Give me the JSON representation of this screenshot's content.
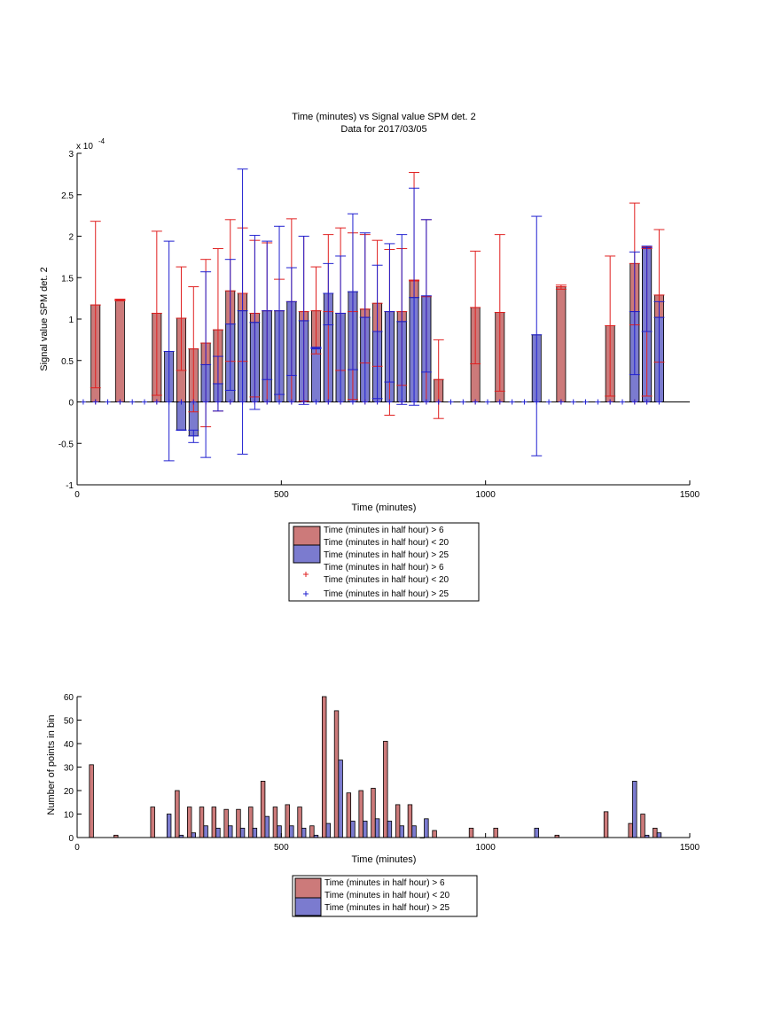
{
  "chart_data": [
    {
      "type": "bar",
      "title": "Time (minutes) vs Signal value SPM det. 2",
      "subtitle": "Data for 2017/03/05",
      "xlabel": "Time (minutes)",
      "ylabel": "Signal value SPM det. 2",
      "exponent_label": "x 10",
      "exponent_power": "-4",
      "xlim": [
        0,
        1500
      ],
      "ylim": [
        -1,
        3
      ],
      "y_scale": 0.0001,
      "xticks": [
        "0",
        "500",
        "1000",
        "1500"
      ],
      "yticks": [
        "-1",
        "-0.5",
        "0",
        "0.5",
        "1",
        "1.5",
        "2",
        "2.5",
        "3"
      ],
      "series": [
        {
          "name": "Time (minutes in half hour) > 6\nTime (minutes in half hour) < 20",
          "color": "#cc7a7a",
          "error_color": "#e02020",
          "x": [
            45,
            105,
            195,
            255,
            285,
            315,
            345,
            375,
            405,
            435,
            465,
            495,
            525,
            555,
            585,
            615,
            645,
            675,
            705,
            735,
            765,
            795,
            825,
            855,
            885,
            975,
            1035,
            1185,
            1305,
            1365,
            1395,
            1425
          ],
          "values": [
            1.17,
            1.23,
            1.07,
            1.01,
            0.64,
            0.71,
            0.87,
            1.34,
            1.31,
            1.07,
            1.1,
            1.1,
            1.21,
            1.09,
            1.1,
            1.09,
            1.07,
            1.09,
            1.12,
            1.19,
            1.09,
            1.09,
            1.47,
            1.27,
            0.27,
            1.14,
            1.08,
            1.39,
            0.92,
            1.67,
            1.87,
            1.29
          ],
          "err_low": [
            0.17,
            1.22,
            0.08,
            0.38,
            -0.12,
            -0.3,
            -0.11,
            0.49,
            0.49,
            0.06,
            0.0,
            0.0,
            0.0,
            0.01,
            0.58,
            0.0,
            0.38,
            0.03,
            0.47,
            0.43,
            -0.16,
            0.2,
            1.46,
            0.0,
            -0.2,
            0.46,
            0.13,
            1.36,
            0.07,
            0.93,
            0.07,
            0.48
          ],
          "err_high": [
            2.18,
            1.24,
            2.06,
            1.63,
            1.39,
            1.72,
            1.85,
            2.2,
            2.1,
            1.95,
            1.92,
            1.48,
            2.21,
            2.0,
            1.63,
            2.02,
            2.1,
            2.04,
            2.02,
            1.95,
            1.84,
            1.85,
            2.77,
            2.2,
            0.75,
            1.82,
            2.02,
            1.41,
            1.76,
            2.4,
            1.85,
            2.08
          ]
        },
        {
          "name": "Time (minutes in half hour) > 25",
          "color": "#7b7bcf",
          "error_color": "#2020d0",
          "x": [
            225,
            255,
            285,
            315,
            345,
            375,
            405,
            435,
            465,
            495,
            525,
            555,
            585,
            615,
            645,
            675,
            705,
            735,
            765,
            795,
            825,
            855,
            1125,
            1365,
            1395,
            1425
          ],
          "values": [
            0.61,
            -0.34,
            -0.41,
            0.45,
            0.22,
            0.94,
            1.1,
            0.96,
            1.1,
            1.1,
            1.21,
            0.98,
            0.65,
            1.31,
            1.07,
            1.33,
            1.02,
            0.85,
            1.09,
            0.97,
            1.26,
            1.28,
            0.81,
            1.09,
            1.86,
            1.02
          ],
          "err_low": [
            -0.71,
            -0.34,
            -0.49,
            -0.67,
            -0.11,
            0.14,
            -0.63,
            -0.09,
            0.27,
            0.09,
            0.32,
            -0.03,
            0.64,
            0.93,
            0.0,
            0.39,
            0.0,
            0.04,
            0.24,
            -0.03,
            -0.04,
            0.36,
            -0.65,
            0.33,
            0.85,
            0.0
          ],
          "err_high": [
            1.94,
            -0.34,
            -0.34,
            1.57,
            0.55,
            1.72,
            2.81,
            2.01,
            1.94,
            2.12,
            1.62,
            2.0,
            0.66,
            1.67,
            1.76,
            2.27,
            2.04,
            1.65,
            1.91,
            2.02,
            2.58,
            2.2,
            2.24,
            1.81,
            1.88,
            1.21
          ]
        },
        {
          "name": "Time (minutes in half hour) > 6\nTime (minutes in half hour) < 20",
          "type": "marker",
          "marker": "+",
          "color": "#e02020",
          "x": [
            45,
            105,
            195,
            255,
            285,
            315,
            345,
            375,
            405,
            435,
            465,
            495,
            525,
            555,
            585,
            615,
            645,
            675,
            705,
            735,
            765,
            795,
            825,
            855,
            885,
            975,
            1035,
            1185,
            1305,
            1365,
            1395,
            1425
          ],
          "values": [
            0,
            0,
            0,
            0,
            0,
            0,
            0,
            0,
            0,
            0,
            0,
            0,
            0,
            0,
            0,
            0,
            0,
            0,
            0,
            0,
            0,
            0,
            0,
            0,
            0,
            0,
            0,
            0,
            0,
            0,
            0,
            0
          ]
        },
        {
          "name": "Time (minutes in half hour) > 25",
          "type": "marker",
          "marker": "+",
          "color": "#2020d0",
          "x": [
            15,
            45,
            75,
            105,
            135,
            165,
            195,
            225,
            255,
            285,
            315,
            345,
            375,
            405,
            435,
            465,
            495,
            525,
            555,
            585,
            615,
            645,
            675,
            705,
            735,
            765,
            795,
            825,
            855,
            885,
            915,
            945,
            975,
            1005,
            1035,
            1065,
            1095,
            1125,
            1155,
            1185,
            1215,
            1245,
            1275,
            1305,
            1335,
            1365,
            1395,
            1425
          ],
          "values": [
            0,
            0,
            0,
            0,
            0,
            0,
            0,
            0,
            0,
            0,
            0,
            0,
            0,
            0,
            0,
            0,
            0,
            0,
            0,
            0,
            0,
            0,
            0,
            0,
            0,
            0,
            0,
            0,
            0,
            0,
            0,
            0,
            0,
            0,
            0,
            0,
            0,
            0,
            0,
            0,
            0,
            0,
            0,
            0,
            0,
            0,
            0,
            0
          ]
        }
      ],
      "legend": {
        "placement": "below",
        "entries": [
          {
            "label": "Time (minutes in half hour) > 6\nTime (minutes in half hour) < 20",
            "kind": "bar",
            "color": "#cc7a7a"
          },
          {
            "label": "Time (minutes in half hour) > 25",
            "kind": "bar",
            "color": "#7b7bcf"
          },
          {
            "label": "Time (minutes in half hour) > 6\nTime (minutes in half hour) < 20",
            "kind": "marker",
            "color": "#e02020"
          },
          {
            "label": "Time (minutes in half hour) > 25",
            "kind": "marker",
            "color": "#2020d0"
          }
        ]
      }
    },
    {
      "type": "bar",
      "title": "",
      "xlabel": "Time (minutes)",
      "ylabel": "Number of points in bin",
      "xlim": [
        0,
        1500
      ],
      "ylim": [
        0,
        60
      ],
      "xticks": [
        "0",
        "500",
        "1000",
        "1500"
      ],
      "yticks": [
        "0",
        "10",
        "20",
        "30",
        "40",
        "50",
        "60"
      ],
      "series": [
        {
          "name": "Time (minutes in half hour) > 6\nTime (minutes in half hour) < 20",
          "color": "#cc7a7a",
          "x": [
            45,
            105,
            195,
            255,
            285,
            315,
            345,
            375,
            405,
            435,
            465,
            495,
            525,
            555,
            585,
            615,
            645,
            675,
            705,
            735,
            765,
            795,
            825,
            855,
            885,
            975,
            1035,
            1185,
            1305,
            1365,
            1395,
            1425
          ],
          "values": [
            31,
            1,
            13,
            20,
            13,
            13,
            13,
            12,
            12,
            13,
            24,
            13,
            14,
            13,
            5,
            60,
            54,
            19,
            20,
            21,
            41,
            14,
            14,
            0,
            3,
            4,
            4,
            1,
            11,
            6,
            10,
            4
          ]
        },
        {
          "name": "Time (minutes in half hour) > 25",
          "color": "#7b7bcf",
          "x": [
            225,
            255,
            285,
            315,
            345,
            375,
            405,
            435,
            465,
            495,
            525,
            555,
            585,
            615,
            645,
            675,
            705,
            735,
            765,
            795,
            825,
            855,
            1125,
            1365,
            1395,
            1425
          ],
          "values": [
            10,
            1,
            2,
            5,
            4,
            5,
            4,
            4,
            9,
            5,
            5,
            4,
            1,
            6,
            33,
            7,
            7,
            8,
            7,
            5,
            5,
            8,
            4,
            24,
            1,
            2
          ]
        }
      ],
      "legend": {
        "placement": "below",
        "entries": [
          {
            "label": "Time (minutes in half hour) > 6\nTime (minutes in half hour) < 20",
            "kind": "bar",
            "color": "#cc7a7a"
          },
          {
            "label": "Time (minutes in half hour) > 25",
            "kind": "bar",
            "color": "#7b7bcf"
          }
        ]
      }
    }
  ]
}
